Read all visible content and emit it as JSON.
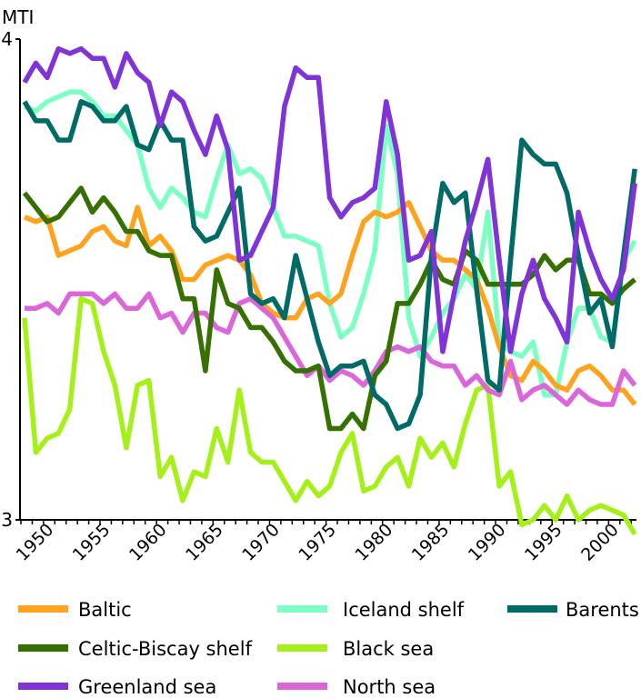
{
  "chart_data": {
    "type": "line",
    "title": "",
    "xlabel": "",
    "ylabel": "MTI",
    "ylim": [
      3,
      4
    ],
    "xlim": [
      1948,
      2002
    ],
    "y_ticks": [
      "3",
      "4"
    ],
    "x_ticks": [
      "1950",
      "1955",
      "1960",
      "1965",
      "1970",
      "1975",
      "1980",
      "1985",
      "1990",
      "1995",
      "2000"
    ],
    "grid": false,
    "legend_position": "bottom",
    "x": [
      1948,
      1949,
      1950,
      1951,
      1952,
      1953,
      1954,
      1955,
      1956,
      1957,
      1958,
      1959,
      1960,
      1961,
      1962,
      1963,
      1964,
      1965,
      1966,
      1967,
      1968,
      1969,
      1970,
      1971,
      1972,
      1973,
      1974,
      1975,
      1976,
      1977,
      1978,
      1979,
      1980,
      1981,
      1982,
      1983,
      1984,
      1985,
      1986,
      1987,
      1988,
      1989,
      1990,
      1991,
      1992,
      1993,
      1994,
      1995,
      1996,
      1997,
      1998,
      1999,
      2000,
      2001,
      2002
    ],
    "series": [
      {
        "name": "Baltic",
        "color": "#FFA31F",
        "values": [
          3.63,
          3.62,
          3.63,
          3.55,
          3.56,
          3.57,
          3.6,
          3.61,
          3.58,
          3.57,
          3.65,
          3.57,
          3.59,
          3.56,
          3.5,
          3.5,
          3.53,
          3.54,
          3.55,
          3.54,
          3.51,
          3.45,
          3.43,
          3.42,
          3.42,
          3.46,
          3.47,
          3.45,
          3.47,
          3.55,
          3.62,
          3.64,
          3.63,
          3.64,
          3.66,
          3.61,
          3.56,
          3.54,
          3.54,
          3.52,
          3.5,
          3.44,
          3.36,
          3.3,
          3.29,
          3.33,
          3.31,
          3.28,
          3.27,
          3.31,
          3.32,
          3.3,
          3.27,
          3.27,
          3.24
        ]
      },
      {
        "name": "Iceland shelf",
        "color": "#7DFFC4",
        "values": [
          3.86,
          3.85,
          3.87,
          3.88,
          3.89,
          3.89,
          3.87,
          3.84,
          3.84,
          3.81,
          3.78,
          3.69,
          3.65,
          3.69,
          3.67,
          3.64,
          3.63,
          3.71,
          3.78,
          3.72,
          3.73,
          3.71,
          3.65,
          3.59,
          3.59,
          3.58,
          3.57,
          3.45,
          3.38,
          3.4,
          3.47,
          3.56,
          3.82,
          3.72,
          3.42,
          3.34,
          3.38,
          3.43,
          3.46,
          3.51,
          3.48,
          3.64,
          3.37,
          3.35,
          3.34,
          3.37,
          3.26,
          3.26,
          3.37,
          3.44,
          3.44,
          3.38,
          3.37,
          3.54,
          3.58
        ]
      },
      {
        "name": "Barents",
        "color": "#006B66",
        "values": [
          3.87,
          3.83,
          3.83,
          3.79,
          3.79,
          3.87,
          3.86,
          3.83,
          3.83,
          3.86,
          3.78,
          3.77,
          3.83,
          3.79,
          3.79,
          3.61,
          3.58,
          3.59,
          3.64,
          3.69,
          3.47,
          3.45,
          3.46,
          3.42,
          3.55,
          3.46,
          3.37,
          3.3,
          3.32,
          3.32,
          3.33,
          3.26,
          3.24,
          3.19,
          3.2,
          3.26,
          3.55,
          3.7,
          3.66,
          3.68,
          3.48,
          3.29,
          3.27,
          3.54,
          3.79,
          3.76,
          3.74,
          3.74,
          3.68,
          3.55,
          3.43,
          3.46,
          3.36,
          3.55,
          3.73
        ]
      },
      {
        "name": "Celtic-Biscay shelf",
        "color": "#357000",
        "values": [
          3.68,
          3.65,
          3.62,
          3.63,
          3.66,
          3.69,
          3.64,
          3.67,
          3.64,
          3.6,
          3.6,
          3.56,
          3.55,
          3.55,
          3.46,
          3.46,
          3.31,
          3.52,
          3.45,
          3.44,
          3.4,
          3.4,
          3.37,
          3.33,
          3.31,
          3.31,
          3.32,
          3.19,
          3.19,
          3.22,
          3.19,
          3.3,
          3.33,
          3.45,
          3.45,
          3.49,
          3.54,
          3.5,
          3.49,
          3.56,
          3.54,
          3.49,
          3.49,
          3.49,
          3.49,
          3.51,
          3.55,
          3.52,
          3.54,
          3.54,
          3.47,
          3.47,
          3.45,
          3.48,
          3.5
        ]
      },
      {
        "name": "Black sea",
        "color": "#A6F01A",
        "values": [
          3.42,
          3.14,
          3.17,
          3.18,
          3.23,
          3.46,
          3.45,
          3.35,
          3.28,
          3.15,
          3.28,
          3.29,
          3.09,
          3.13,
          3.04,
          3.1,
          3.09,
          3.19,
          3.12,
          3.27,
          3.14,
          3.12,
          3.12,
          3.08,
          3.04,
          3.08,
          3.05,
          3.07,
          3.14,
          3.18,
          3.06,
          3.07,
          3.11,
          3.13,
          3.07,
          3.17,
          3.13,
          3.16,
          3.11,
          3.2,
          3.27,
          3.28,
          3.07,
          3.1,
          2.99,
          3.0,
          3.03,
          3.0,
          3.05,
          3.0,
          3.02,
          3.03,
          3.02,
          3.01,
          2.97
        ]
      },
      {
        "name": "Greenland sea",
        "color": "#8033D6",
        "values": [
          3.91,
          3.95,
          3.92,
          3.98,
          3.97,
          3.98,
          3.96,
          3.96,
          3.9,
          3.97,
          3.93,
          3.91,
          3.82,
          3.89,
          3.87,
          3.81,
          3.76,
          3.84,
          3.77,
          3.54,
          3.55,
          3.6,
          3.65,
          3.86,
          3.94,
          3.92,
          3.92,
          3.67,
          3.63,
          3.66,
          3.67,
          3.69,
          3.87,
          3.76,
          3.54,
          3.55,
          3.6,
          3.35,
          3.47,
          3.58,
          3.66,
          3.75,
          3.54,
          3.35,
          3.47,
          3.54,
          3.46,
          3.42,
          3.37,
          3.64,
          3.56,
          3.5,
          3.46,
          3.52,
          3.7
        ]
      },
      {
        "name": "North sea",
        "color": "#DB66D9",
        "values": [
          3.44,
          3.44,
          3.45,
          3.43,
          3.47,
          3.47,
          3.47,
          3.45,
          3.47,
          3.44,
          3.44,
          3.47,
          3.42,
          3.43,
          3.39,
          3.43,
          3.43,
          3.4,
          3.39,
          3.45,
          3.46,
          3.44,
          3.42,
          3.38,
          3.34,
          3.3,
          3.32,
          3.29,
          3.31,
          3.3,
          3.28,
          3.31,
          3.35,
          3.36,
          3.35,
          3.36,
          3.33,
          3.32,
          3.32,
          3.28,
          3.3,
          3.27,
          3.26,
          3.33,
          3.25,
          3.27,
          3.28,
          3.26,
          3.24,
          3.27,
          3.25,
          3.24,
          3.24,
          3.31,
          3.28
        ]
      }
    ]
  }
}
